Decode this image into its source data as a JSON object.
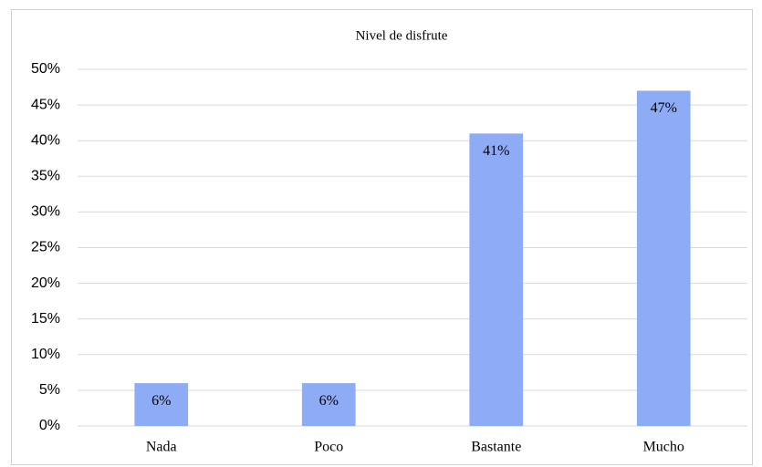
{
  "chart_data": {
    "type": "bar",
    "title": "Nivel de disfrute",
    "categories": [
      "Nada",
      "Poco",
      "Bastante",
      "Mucho"
    ],
    "values": [
      6,
      6,
      41,
      47
    ],
    "value_labels": [
      "6%",
      "6%",
      "41%",
      "47%"
    ],
    "color": "#8eabf6",
    "ylim": [
      0,
      50
    ],
    "yticks": [
      {
        "value": 0,
        "label": "0%"
      },
      {
        "value": 5,
        "label": "5%"
      },
      {
        "value": 10,
        "label": "10%"
      },
      {
        "value": 15,
        "label": "15%"
      },
      {
        "value": 20,
        "label": "20%"
      },
      {
        "value": 25,
        "label": "25%"
      },
      {
        "value": 30,
        "label": "30%"
      },
      {
        "value": 35,
        "label": "35%"
      },
      {
        "value": 40,
        "label": "40%"
      },
      {
        "value": 45,
        "label": "45%"
      },
      {
        "value": 50,
        "label": "50%"
      }
    ],
    "grid": true
  }
}
